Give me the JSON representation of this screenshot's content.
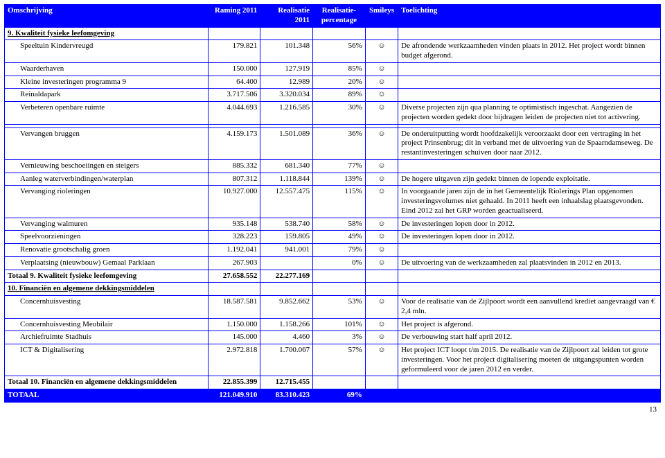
{
  "header": {
    "c0": "Omschrijving",
    "c1": "Raming 2011",
    "c2_a": "Realisatie",
    "c2_b": "2011",
    "c3_a": "Realisatie-",
    "c3_b": "percentage",
    "c4": "Smileys",
    "c5": "Toelichting"
  },
  "section9": {
    "title": "9. Kwaliteit fysieke leefomgeving",
    "rows": [
      {
        "desc": "Speeltuin Kindervreugd",
        "raming": "179.821",
        "real": "101.348",
        "pct": "56%",
        "smile": "☺",
        "toel": "De afrondende werkzaamheden vinden plaats in 2012. Het project wordt binnen budget afgerond."
      },
      {
        "desc": "Waarderhaven",
        "raming": "150.000",
        "real": "127.919",
        "pct": "85%",
        "smile": "☺",
        "toel": ""
      },
      {
        "desc": "Kleine investeringen programma 9",
        "raming": "64.400",
        "real": "12.989",
        "pct": "20%",
        "smile": "☺",
        "toel": ""
      },
      {
        "desc": "Reinaldapark",
        "raming": "3.717.506",
        "real": "3.320.034",
        "pct": "89%",
        "smile": "☺",
        "toel": ""
      },
      {
        "desc": "Verbeteren openbare ruimte",
        "raming": "4.044.693",
        "real": "1.216.585",
        "pct": "30%",
        "smile": "☺",
        "toel": "Diverse projecten zijn qua planning te optimistisch ingeschat. Aangezien de projecten worden gedekt door bijdragen leiden de projecten niet tot activering."
      },
      {
        "desc": "",
        "raming": "",
        "real": "",
        "pct": "",
        "smile": "",
        "toel": ""
      },
      {
        "desc": "Vervangen bruggen",
        "raming": "4.159.173",
        "real": "1.501.089",
        "pct": "36%",
        "smile": "☺",
        "toel": "De onderuitputting wordt hoofdzakelijk veroorzaakt door een vertraging in het project Prinsenbrug; dit in verband met de uitvoering van de Spaarndamseweg. De restantinvesteringen schuiven door naar 2012."
      },
      {
        "desc": "Vernieuwing beschoeiingen en steigers",
        "raming": "885.332",
        "real": "681.340",
        "pct": "77%",
        "smile": "☺",
        "toel": ""
      },
      {
        "desc": "Aanleg waterverbindingen/waterplan",
        "raming": "807.312",
        "real": "1.118.844",
        "pct": "139%",
        "smile": "☺",
        "toel": "De hogere uitgaven zijn gedekt binnen de lopende exploitatie."
      },
      {
        "desc": "Vervanging rioleringen",
        "raming": "10.927.000",
        "real": "12.557.475",
        "pct": "115%",
        "smile": "☺",
        "toel": "In voorgaande jaren zijn de in het Gemeentelijk Riolerings Plan opgenomen investeringsvolumes niet gehaald. In 2011 heeft een inhaalslag plaatsgevonden. Eind 2012 zal het GRP worden geactualiseerd."
      },
      {
        "desc": "Vervanging walmuren",
        "raming": "935.148",
        "real": "538.740",
        "pct": "58%",
        "smile": "☺",
        "toel": "De investeringen lopen door in 2012."
      },
      {
        "desc": "Speelvoorzieningen",
        "raming": "328.223",
        "real": "159.805",
        "pct": "49%",
        "smile": "☺",
        "toel": "De investeringen lopen door in 2012."
      },
      {
        "desc": "Renovatie grootschalig groen",
        "raming": "1.192.041",
        "real": "941.001",
        "pct": "79%",
        "smile": "☺",
        "toel": ""
      },
      {
        "desc": "Verplaatsing (nieuwbouw) Gemaal Parklaan",
        "raming": "267.903",
        "real": "",
        "pct": "0%",
        "smile": "☺",
        "toel": "De uitvoering van de werkzaamheden zal plaatsvinden in 2012 en 2013."
      }
    ],
    "total": {
      "label": "Totaal 9. Kwaliteit fysieke leefomgeving",
      "raming": "27.658.552",
      "real": "22.277.169"
    }
  },
  "section10": {
    "title": "10. Financiën en algemene dekkingsmiddelen",
    "rows": [
      {
        "desc": "Concernhuisvesting",
        "raming": "18.587.581",
        "real": "9.852.662",
        "pct": "53%",
        "smile": "☺",
        "toel": "Voor de realisatie van de Zijlpoort wordt een aanvullend krediet aangevraagd van € 2,4 mln."
      },
      {
        "desc": "Concernhuisvesting Meubilair",
        "raming": "1.150.000",
        "real": "1.158.266",
        "pct": "101%",
        "smile": "☺",
        "toel": "Het project is afgerond."
      },
      {
        "desc": "Archiefruimte Stadhuis",
        "raming": "145.000",
        "real": "4.460",
        "pct": "3%",
        "smile": "☺",
        "toel": "De verbouwing start half april 2012."
      },
      {
        "desc": "ICT & Digitalisering",
        "raming": "2.972.818",
        "real": "1.700.067",
        "pct": "57%",
        "smile": "☺",
        "toel": "Het project ICT loopt t/m 2015. De realisatie van de Zijlpoort zal leiden tot grote investeringen. Voor het project digitalisering moeten de uitgangspunten worden geformuleerd voor de jaren 2012 en verder."
      }
    ],
    "total": {
      "label": "Totaal 10. Financiën en algemene dekkingsmiddelen",
      "raming": "22.855.399",
      "real": "12.715.455"
    }
  },
  "grand": {
    "label": "TOTAAL",
    "raming": "121.049.910",
    "real": "83.310.423",
    "pct": "69%"
  },
  "pagenum": "13"
}
